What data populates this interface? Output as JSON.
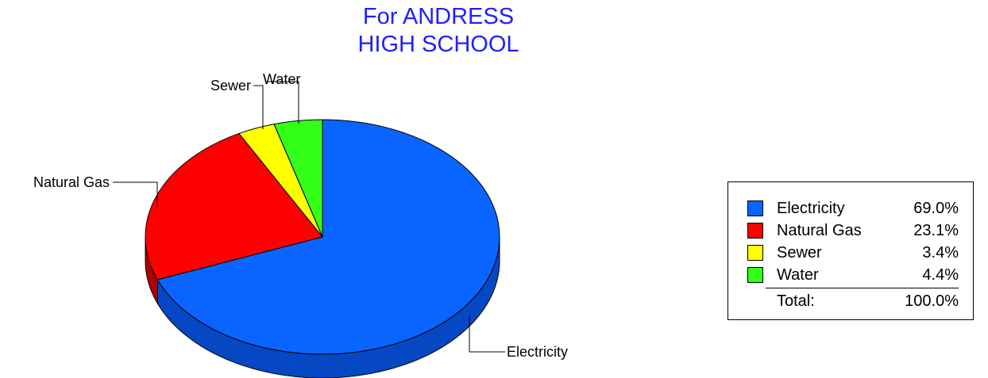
{
  "chart_data": {
    "type": "pie",
    "title_lines": [
      "For ANDRESS",
      "HIGH SCHOOL"
    ],
    "slices": [
      {
        "name": "Electricity",
        "value": 69.0,
        "label": "69.0%",
        "color": "#0a64ff",
        "side_color": "#0648c4"
      },
      {
        "name": "Natural Gas",
        "value": 23.1,
        "label": "23.1%",
        "color": "#ff0000",
        "side_color": "#b00000"
      },
      {
        "name": "Sewer",
        "value": 3.4,
        "label": "3.4%",
        "color": "#ffff00",
        "side_color": "#c8c800"
      },
      {
        "name": "Water",
        "value": 4.4,
        "label": "4.4%",
        "color": "#33ff18",
        "side_color": "#20b010"
      }
    ],
    "total": {
      "label": "Total:",
      "value": "100.0%"
    },
    "legend_position": "right"
  }
}
